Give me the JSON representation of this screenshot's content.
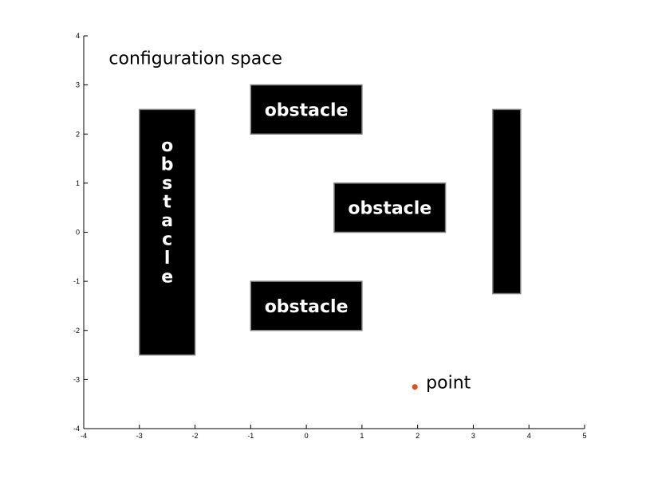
{
  "chart_data": {
    "type": "scatter",
    "title": "configuration space",
    "xlabel": "",
    "ylabel": "",
    "xlim": [
      -4,
      5
    ],
    "ylim": [
      -4,
      4
    ],
    "x_ticks": [
      -4,
      -3,
      -2,
      -1,
      0,
      1,
      2,
      3,
      4,
      5
    ],
    "y_ticks": [
      -4,
      -3,
      -2,
      -1,
      0,
      1,
      2,
      3,
      4
    ],
    "grid": false,
    "obstacles": [
      {
        "x": [
          -3,
          -2
        ],
        "y": [
          -2.5,
          2.5
        ],
        "label": "obstacle",
        "label_orientation": "vertical"
      },
      {
        "x": [
          -1,
          1
        ],
        "y": [
          2,
          3
        ],
        "label": "obstacle",
        "label_orientation": "horizontal"
      },
      {
        "x": [
          0.5,
          2.5
        ],
        "y": [
          0,
          1
        ],
        "label": "obstacle",
        "label_orientation": "horizontal"
      },
      {
        "x": [
          -1,
          1
        ],
        "y": [
          -2,
          -1
        ],
        "label": "obstacle",
        "label_orientation": "horizontal"
      },
      {
        "x": [
          3.35,
          3.85
        ],
        "y": [
          -1.25,
          2.5
        ],
        "label": "",
        "label_orientation": "none"
      }
    ],
    "points": [
      {
        "x": 1.95,
        "y": -3.15,
        "label": "point",
        "color": "#e0501e"
      }
    ],
    "colors": {
      "obstacle_fill": "#000000",
      "obstacle_stroke": "#7f7f7f",
      "obstacle_text": "#ffffff",
      "axis": "#000000"
    }
  }
}
